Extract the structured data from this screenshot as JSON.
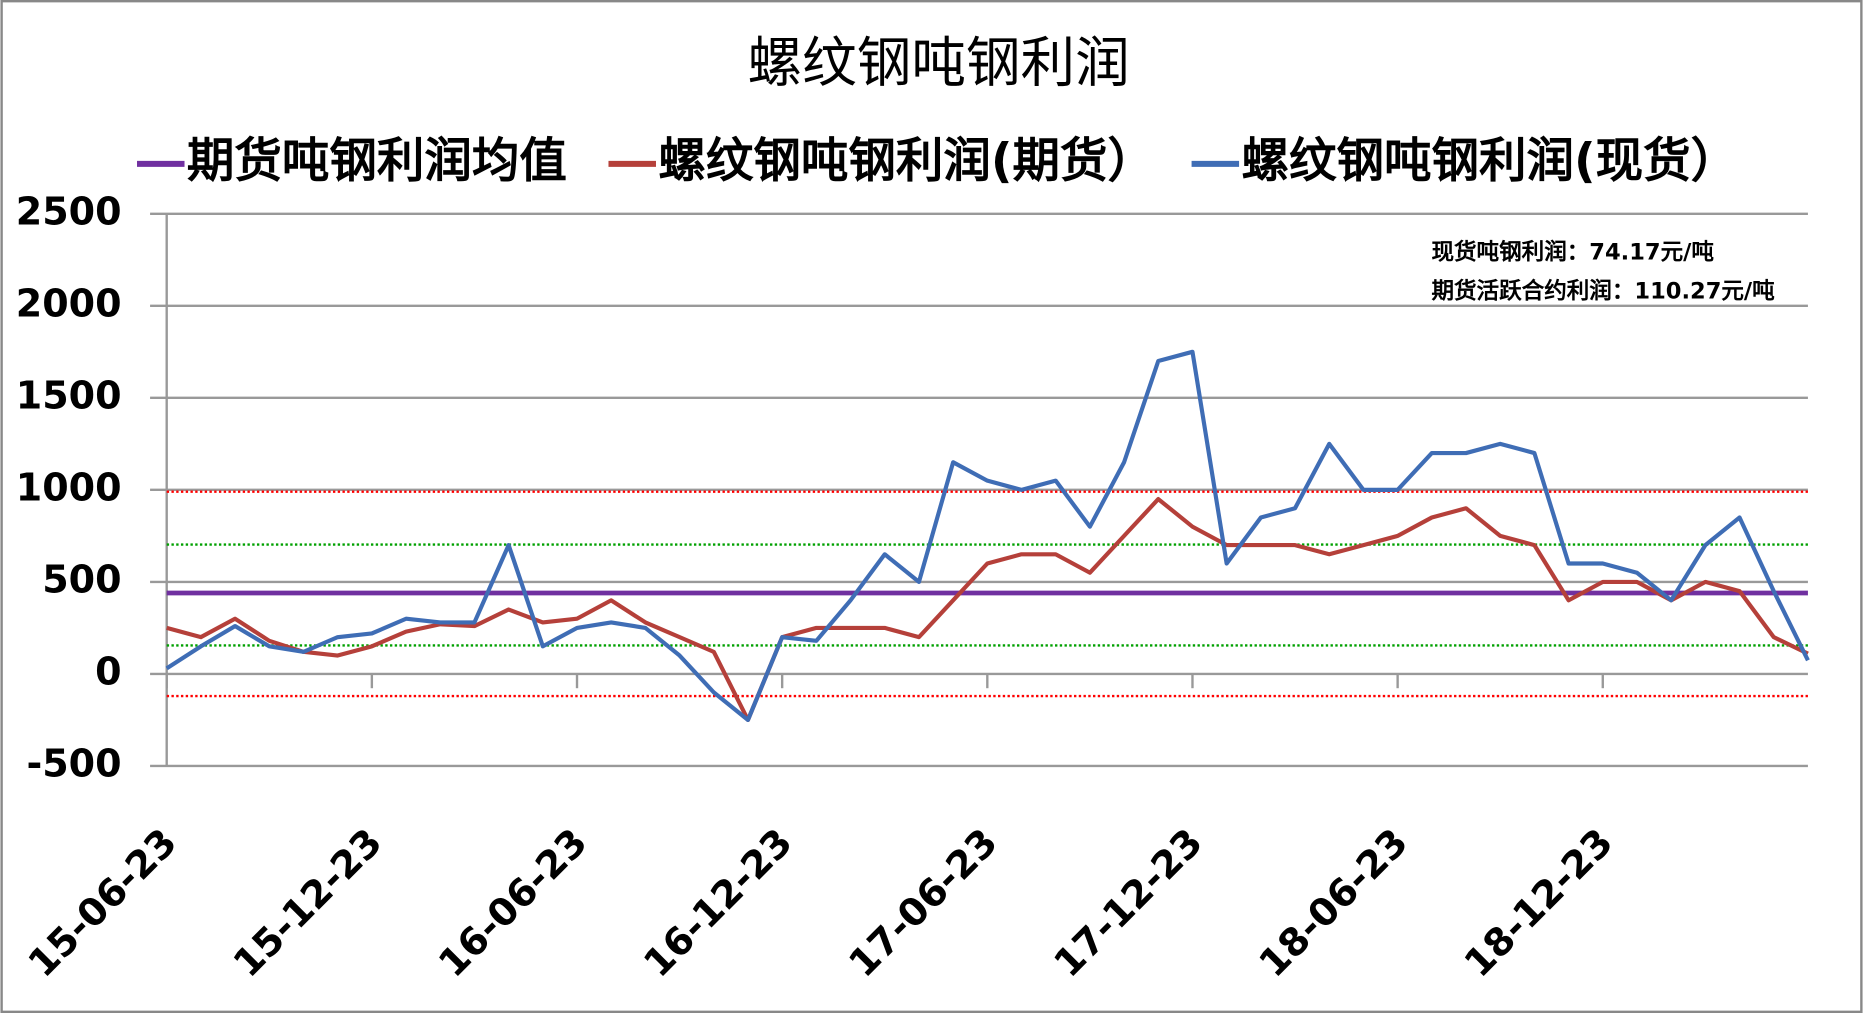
{
  "chart_data": {
    "type": "line",
    "title": "螺纹钢吨钢利润",
    "x": [
      0,
      1,
      2,
      3,
      4,
      5,
      6,
      7,
      8,
      9,
      10,
      11,
      12,
      13,
      14,
      15,
      16,
      17,
      18,
      19,
      20,
      21,
      22,
      23,
      24,
      25,
      26,
      27,
      28,
      29,
      30,
      31,
      32,
      33,
      34,
      35,
      36,
      37,
      38,
      39,
      40,
      41,
      42,
      43,
      44,
      45,
      46,
      47,
      48
    ],
    "xlim": [
      0,
      48
    ],
    "xticks": [
      {
        "value": 0,
        "label": "15-06-23"
      },
      {
        "value": 6,
        "label": "15-12-23"
      },
      {
        "value": 12,
        "label": "16-06-23"
      },
      {
        "value": 18,
        "label": "16-12-23"
      },
      {
        "value": 24,
        "label": "17-06-23"
      },
      {
        "value": 30,
        "label": "17-12-23"
      },
      {
        "value": 36,
        "label": "18-06-23"
      },
      {
        "value": 42,
        "label": "18-12-23"
      }
    ],
    "ylim": [
      -500,
      2500
    ],
    "yticks": [
      -500,
      0,
      500,
      1000,
      1500,
      2000,
      2500
    ],
    "grid": true,
    "series": [
      {
        "name": "期货吨钢利润均值",
        "color": "#7030a0",
        "values": [
          440,
          440,
          440,
          440,
          440,
          440,
          440,
          440,
          440,
          440,
          440,
          440,
          440,
          440,
          440,
          440,
          440,
          440,
          440,
          440,
          440,
          440,
          440,
          440,
          440,
          440,
          440,
          440,
          440,
          440,
          440,
          440,
          440,
          440,
          440,
          440,
          440,
          440,
          440,
          440,
          440,
          440,
          440,
          440,
          440,
          440,
          440,
          440,
          440
        ]
      },
      {
        "name": "螺纹钢吨钢利润(期货）",
        "color": "#b5403a",
        "values": [
          250,
          200,
          300,
          180,
          120,
          100,
          150,
          230,
          270,
          260,
          350,
          280,
          300,
          400,
          280,
          200,
          120,
          -250,
          200,
          250,
          250,
          250,
          200,
          400,
          600,
          650,
          650,
          550,
          750,
          950,
          800,
          700,
          700,
          700,
          650,
          700,
          750,
          850,
          900,
          750,
          700,
          400,
          500,
          500,
          400,
          500,
          450,
          200,
          110.27
        ]
      },
      {
        "name": "螺纹钢吨钢利润(现货）",
        "color": "#3f6db5",
        "values": [
          30,
          150,
          260,
          150,
          120,
          200,
          220,
          300,
          280,
          280,
          700,
          150,
          250,
          280,
          250,
          100,
          -100,
          -250,
          200,
          180,
          400,
          650,
          500,
          1150,
          1050,
          1000,
          1050,
          800,
          1150,
          1700,
          1750,
          600,
          850,
          900,
          1250,
          1000,
          1000,
          1200,
          1200,
          1250,
          1200,
          600,
          600,
          550,
          400,
          700,
          850,
          450,
          74.17
        ]
      }
    ],
    "reference_lines": [
      {
        "value": 990,
        "color": "#ff0000"
      },
      {
        "value": -120,
        "color": "#ff0000"
      },
      {
        "value": 703,
        "color": "#00a000"
      },
      {
        "value": 155,
        "color": "#00a000"
      }
    ],
    "annotations": [
      "现货吨钢利润：74.17元/吨",
      "期货活跃合约利润：110.27元/吨"
    ]
  }
}
